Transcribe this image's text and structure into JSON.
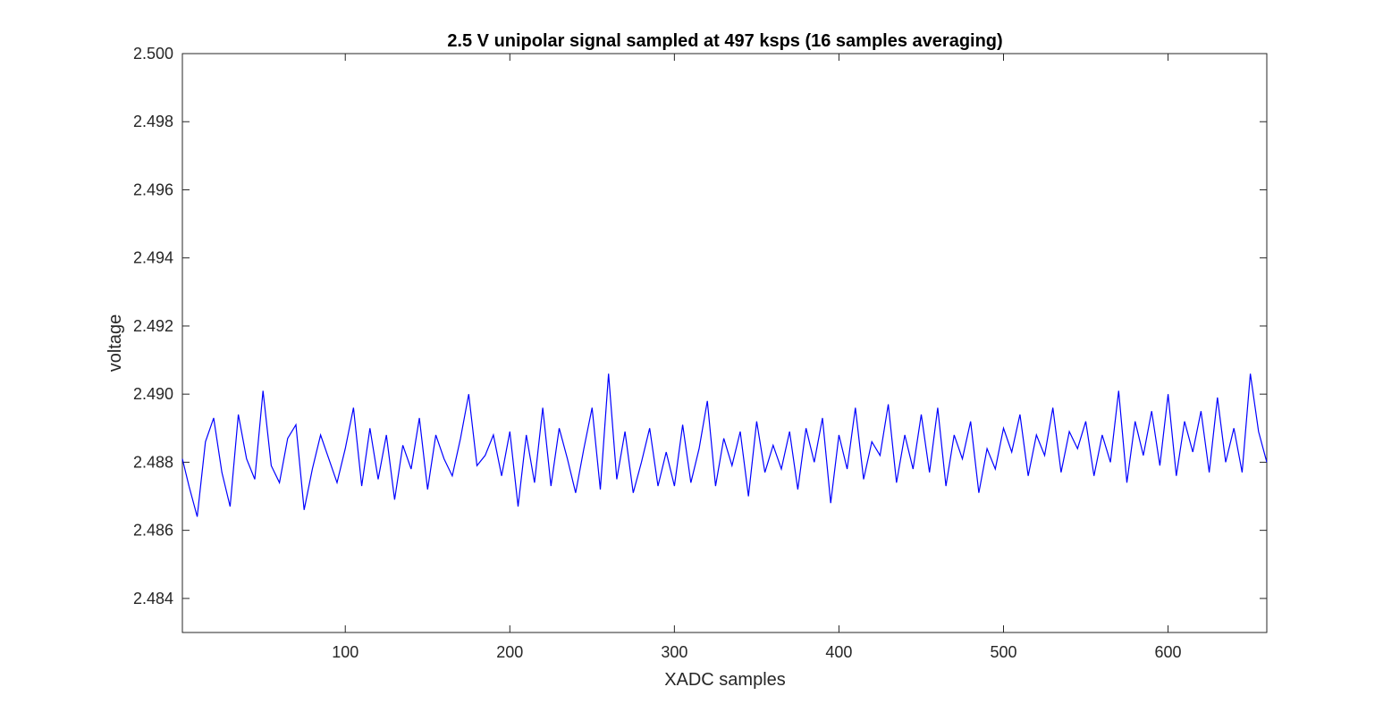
{
  "chart_data": {
    "type": "line",
    "title": "2.5 V unipolar signal sampled at 497 ksps (16 samples averaging)",
    "xlabel": "XADC samples",
    "ylabel": "voltage",
    "xlim": [
      1,
      660
    ],
    "ylim": [
      2.483,
      2.5
    ],
    "xticks": [
      100,
      200,
      300,
      400,
      500,
      600
    ],
    "xtick_labels": [
      "100",
      "200",
      "300",
      "400",
      "500",
      "600"
    ],
    "yticks": [
      2.484,
      2.486,
      2.488,
      2.49,
      2.492,
      2.494,
      2.496,
      2.498,
      2.5
    ],
    "ytick_labels": [
      "2.484",
      "2.486",
      "2.488",
      "2.490",
      "2.492",
      "2.494",
      "2.496",
      "2.498",
      "2.500"
    ],
    "grid": false,
    "legend": "none",
    "line_color": "#0000ff",
    "series": [
      {
        "x": [
          1,
          5,
          10,
          15,
          20,
          25,
          30,
          35,
          40,
          45,
          50,
          55,
          60,
          65,
          70,
          75,
          80,
          85,
          90,
          95,
          100,
          105,
          110,
          115,
          120,
          125,
          130,
          135,
          140,
          145,
          150,
          155,
          160,
          165,
          170,
          175,
          180,
          185,
          190,
          195,
          200,
          205,
          210,
          215,
          220,
          225,
          230,
          235,
          240,
          245,
          250,
          255,
          260,
          265,
          270,
          275,
          280,
          285,
          290,
          295,
          300,
          305,
          310,
          315,
          320,
          325,
          330,
          335,
          340,
          345,
          350,
          355,
          360,
          365,
          370,
          375,
          380,
          385,
          390,
          395,
          400,
          405,
          410,
          415,
          420,
          425,
          430,
          435,
          440,
          445,
          450,
          455,
          460,
          465,
          470,
          475,
          480,
          485,
          490,
          495,
          500,
          505,
          510,
          515,
          520,
          525,
          530,
          535,
          540,
          545,
          550,
          555,
          560,
          565,
          570,
          575,
          580,
          585,
          590,
          595,
          600,
          605,
          610,
          615,
          620,
          625,
          630,
          635,
          640,
          645,
          650,
          655,
          660
        ],
        "values": [
          2.4881,
          2.4873,
          2.4864,
          2.4886,
          2.4893,
          2.4877,
          2.4867,
          2.4894,
          2.4881,
          2.4875,
          2.4901,
          2.4879,
          2.4874,
          2.4887,
          2.4891,
          2.4866,
          2.4878,
          2.4888,
          2.4881,
          2.4874,
          2.4884,
          2.4896,
          2.4873,
          2.489,
          2.4875,
          2.4888,
          2.4869,
          2.4885,
          2.4878,
          2.4893,
          2.4872,
          2.4888,
          2.4881,
          2.4876,
          2.4887,
          2.49,
          2.4879,
          2.4882,
          2.4888,
          2.4876,
          2.4889,
          2.4867,
          2.4888,
          2.4874,
          2.4896,
          2.4873,
          2.489,
          2.4881,
          2.4871,
          2.4884,
          2.4896,
          2.4872,
          2.4906,
          2.4875,
          2.4889,
          2.4871,
          2.488,
          2.489,
          2.4873,
          2.4883,
          2.4873,
          2.4891,
          2.4874,
          2.4884,
          2.4898,
          2.4873,
          2.4887,
          2.4879,
          2.4889,
          2.487,
          2.4892,
          2.4877,
          2.4885,
          2.4878,
          2.4889,
          2.4872,
          2.489,
          2.488,
          2.4893,
          2.4868,
          2.4888,
          2.4878,
          2.4896,
          2.4875,
          2.4886,
          2.4882,
          2.4897,
          2.4874,
          2.4888,
          2.4878,
          2.4894,
          2.4877,
          2.4896,
          2.4873,
          2.4888,
          2.4881,
          2.4892,
          2.4871,
          2.4884,
          2.4878,
          2.489,
          2.4883,
          2.4894,
          2.4876,
          2.4888,
          2.4882,
          2.4896,
          2.4877,
          2.4889,
          2.4884,
          2.4892,
          2.4876,
          2.4888,
          2.488,
          2.4901,
          2.4874,
          2.4892,
          2.4882,
          2.4895,
          2.4879,
          2.49,
          2.4876,
          2.4892,
          2.4883,
          2.4895,
          2.4877,
          2.4899,
          2.488,
          2.489,
          2.4877,
          2.4906,
          2.4889,
          2.488
        ]
      }
    ]
  }
}
